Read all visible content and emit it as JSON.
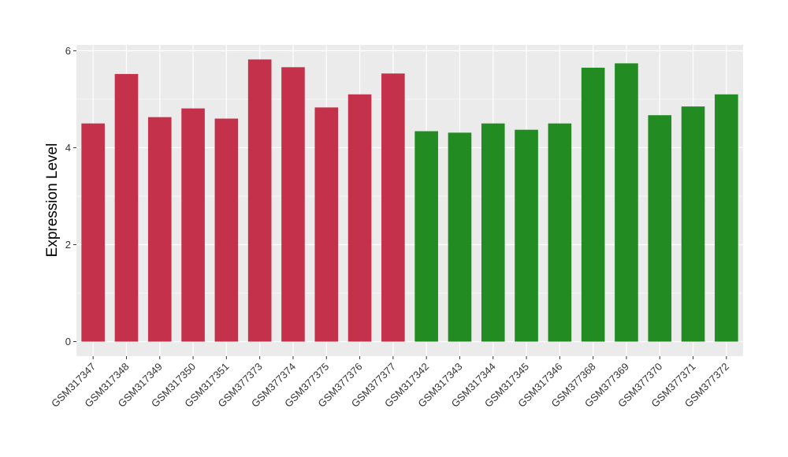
{
  "chart_data": {
    "type": "bar",
    "ylabel": "Expression Level",
    "xlabel": "",
    "ylim": [
      -0.3,
      6.12
    ],
    "yticks": [
      0,
      2,
      4,
      6
    ],
    "grid": true,
    "legend": "none",
    "categories": [
      "GSM317347",
      "GSM317348",
      "GSM317349",
      "GSM317350",
      "GSM317351",
      "GSM377373",
      "GSM377374",
      "GSM377375",
      "GSM377376",
      "GSM377377",
      "GSM317342",
      "GSM317343",
      "GSM317344",
      "GSM317345",
      "GSM317346",
      "GSM377368",
      "GSM377369",
      "GSM377370",
      "GSM377371",
      "GSM377372"
    ],
    "values": [
      4.5,
      5.52,
      4.63,
      4.81,
      4.6,
      5.82,
      5.66,
      4.83,
      5.1,
      5.53,
      4.34,
      4.31,
      4.5,
      4.37,
      4.5,
      5.65,
      5.74,
      4.67,
      4.85,
      5.1
    ],
    "colors": [
      "#c4314a",
      "#c4314a",
      "#c4314a",
      "#c4314a",
      "#c4314a",
      "#c4314a",
      "#c4314a",
      "#c4314a",
      "#c4314a",
      "#c4314a",
      "#228b22",
      "#228b22",
      "#228b22",
      "#228b22",
      "#228b22",
      "#228b22",
      "#228b22",
      "#228b22",
      "#228b22",
      "#228b22"
    ],
    "panel_background": "#ebebeb",
    "grid_color": "#ffffff"
  }
}
